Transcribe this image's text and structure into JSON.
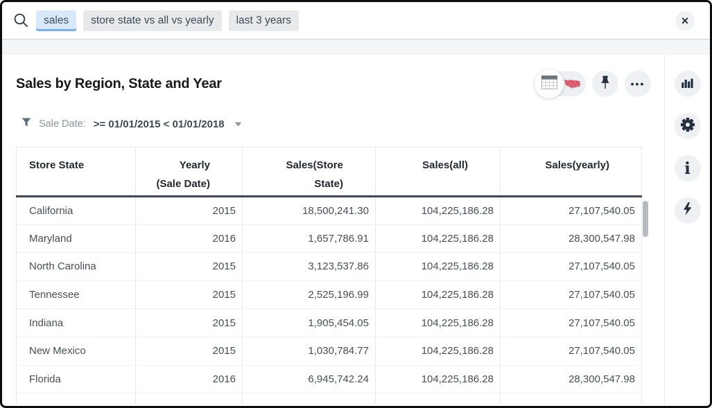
{
  "search_bar": {
    "tokens": [
      {
        "label": "sales",
        "state": "active"
      },
      {
        "label": "store state vs all vs yearly",
        "state": "normal"
      },
      {
        "label": "last 3 years",
        "state": "normal"
      }
    ],
    "close_label": "×"
  },
  "answer": {
    "title": "Sales by Region, State and Year",
    "filter": {
      "label": "Sale Date:",
      "value": ">= 01/01/2015 < 01/01/2018"
    }
  },
  "toolbar": {
    "view_toggle": {
      "selected": "table",
      "options": [
        "table",
        "map"
      ]
    },
    "ellipsis": "•••"
  },
  "right_rail": {
    "icons": [
      "bar-chart",
      "settings",
      "info",
      "lightning"
    ],
    "info_glyph": "i"
  },
  "table": {
    "columns": [
      {
        "id": "store-state",
        "lines": [
          "Store State"
        ],
        "align": "left"
      },
      {
        "id": "yearly-sale-date",
        "lines": [
          "Yearly",
          "(Sale Date)"
        ],
        "align": "right"
      },
      {
        "id": "sales-store-state",
        "lines": [
          "Sales(Store",
          "State)"
        ],
        "align": "right"
      },
      {
        "id": "sales-all",
        "lines": [
          "Sales(all)"
        ],
        "align": "right"
      },
      {
        "id": "sales-yearly",
        "lines": [
          "Sales(yearly)"
        ],
        "align": "right"
      }
    ],
    "rows": [
      [
        "California",
        "2015",
        "18,500,241.30",
        "104,225,186.28",
        "27,107,540.05"
      ],
      [
        "Maryland",
        "2016",
        "1,657,786.91",
        "104,225,186.28",
        "28,300,547.98"
      ],
      [
        "North Carolina",
        "2015",
        "3,123,537.86",
        "104,225,186.28",
        "27,107,540.05"
      ],
      [
        "Tennessee",
        "2015",
        "2,525,196.99",
        "104,225,186.28",
        "27,107,540.05"
      ],
      [
        "Indiana",
        "2015",
        "1,905,454.05",
        "104,225,186.28",
        "27,107,540.05"
      ],
      [
        "New Mexico",
        "2015",
        "1,030,784.77",
        "104,225,186.28",
        "27,107,540.05"
      ],
      [
        "Florida",
        "2016",
        "6,945,742.24",
        "104,225,186.28",
        "28,300,547.98"
      ]
    ]
  },
  "colors": {
    "active_token_bg": "#d9e9fc",
    "active_token_underline": "#74aef3",
    "chip_bg": "#e8e9eb",
    "map_icon_red": "#d8596c",
    "header_divider": "#3d4753",
    "icon_dark": "#232f3e",
    "circle_bg": "#eef0f3"
  }
}
